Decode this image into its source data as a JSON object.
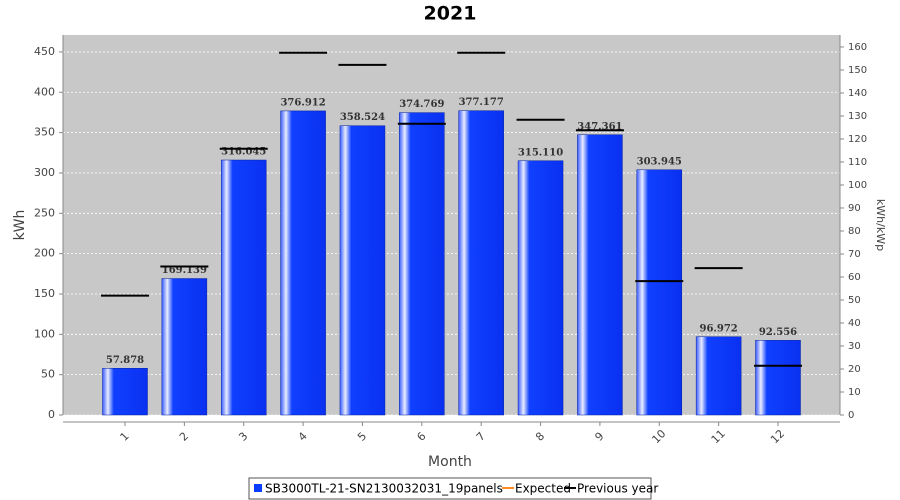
{
  "chart_data": {
    "type": "bar",
    "title": "2021",
    "x_label": "Month",
    "y_label": "kWh",
    "y2_label": "kWh/kWp",
    "categories": [
      "1",
      "2",
      "3",
      "4",
      "5",
      "6",
      "7",
      "8",
      "9",
      "10",
      "11",
      "12"
    ],
    "series": [
      {
        "name": "SB3000TL-21-SN2130032031_19panels",
        "color": "#0a3cff",
        "values": [
          57.878,
          169.139,
          316.045,
          376.912,
          358.524,
          374.769,
          377.177,
          315.11,
          347.361,
          303.945,
          96.972,
          92.556
        ],
        "value_labels": [
          "57.878",
          "169.139",
          "316.045",
          "376.912",
          "358.524",
          "374.769",
          "377.177",
          "315.110",
          "347.361",
          "303.945",
          "96.972",
          "92.556"
        ]
      },
      {
        "name": "Expected",
        "color": "#ff8c1a",
        "values": [
          null,
          null,
          null,
          null,
          null,
          null,
          null,
          null,
          null,
          null,
          null,
          null
        ]
      },
      {
        "name": "Previous year",
        "color": "#000000",
        "values": [
          148,
          184,
          330,
          449,
          434,
          361,
          449,
          366,
          353,
          166,
          182,
          61
        ]
      }
    ],
    "ylim": [
      0,
      471
    ],
    "yticks": [
      0,
      50,
      100,
      150,
      200,
      250,
      300,
      350,
      400,
      450
    ],
    "y2lim": [
      0,
      165.2
    ],
    "y2ticks": [
      0,
      10,
      20,
      30,
      40,
      50,
      60,
      70,
      80,
      90,
      100,
      110,
      120,
      130,
      140,
      150,
      160
    ],
    "grid": true
  }
}
